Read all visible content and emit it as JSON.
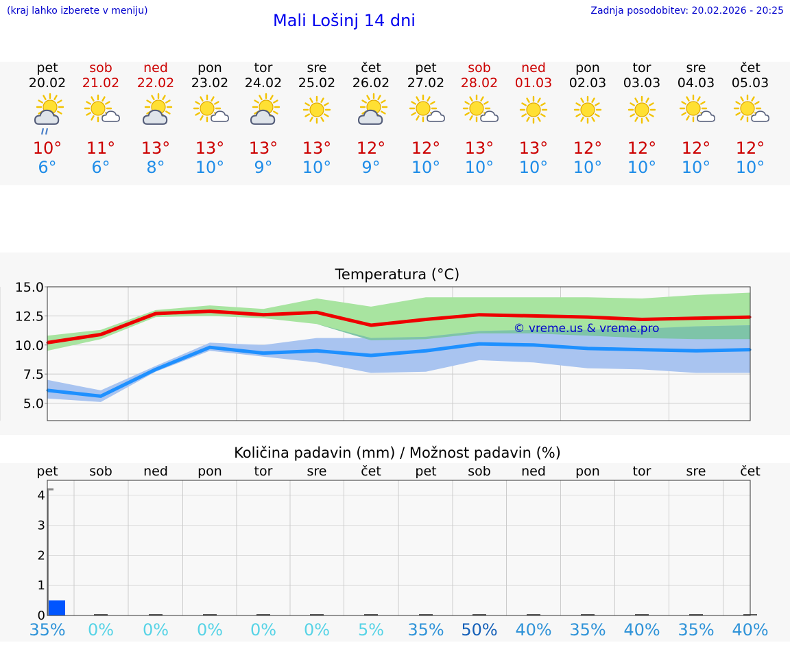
{
  "header": {
    "hint": "(kraj lahko izberete v meniju)",
    "title": "Mali Lošinj 14 dni",
    "updated": "Zadnja posodobitev: 20.02.2026 - 20:25"
  },
  "days": [
    {
      "name": "pet",
      "date": "20.02",
      "weekend": false,
      "icon": "sun-cloud-rain-icon",
      "tmax": "10°",
      "tmin": "6°"
    },
    {
      "name": "sob",
      "date": "21.02",
      "weekend": true,
      "icon": "sun-small-cloud-icon",
      "tmax": "11°",
      "tmin": "6°"
    },
    {
      "name": "ned",
      "date": "22.02",
      "weekend": true,
      "icon": "sun-cloud-icon",
      "tmax": "13°",
      "tmin": "8°"
    },
    {
      "name": "pon",
      "date": "23.02",
      "weekend": false,
      "icon": "sun-small-cloud-icon",
      "tmax": "13°",
      "tmin": "10°"
    },
    {
      "name": "tor",
      "date": "24.02",
      "weekend": false,
      "icon": "sun-cloud-icon",
      "tmax": "13°",
      "tmin": "9°"
    },
    {
      "name": "sre",
      "date": "25.02",
      "weekend": false,
      "icon": "sun-icon",
      "tmax": "13°",
      "tmin": "10°"
    },
    {
      "name": "čet",
      "date": "26.02",
      "weekend": false,
      "icon": "sun-cloud-icon",
      "tmax": "12°",
      "tmin": "9°"
    },
    {
      "name": "pet",
      "date": "27.02",
      "weekend": false,
      "icon": "sun-small-cloud-icon",
      "tmax": "12°",
      "tmin": "10°"
    },
    {
      "name": "sob",
      "date": "28.02",
      "weekend": true,
      "icon": "sun-small-cloud-icon",
      "tmax": "13°",
      "tmin": "10°"
    },
    {
      "name": "ned",
      "date": "01.03",
      "weekend": true,
      "icon": "sun-icon",
      "tmax": "13°",
      "tmin": "10°"
    },
    {
      "name": "pon",
      "date": "02.03",
      "weekend": false,
      "icon": "sun-icon",
      "tmax": "12°",
      "tmin": "10°"
    },
    {
      "name": "tor",
      "date": "03.03",
      "weekend": false,
      "icon": "sun-icon",
      "tmax": "12°",
      "tmin": "10°"
    },
    {
      "name": "sre",
      "date": "04.03",
      "weekend": false,
      "icon": "sun-small-cloud-icon",
      "tmax": "12°",
      "tmin": "10°"
    },
    {
      "name": "čet",
      "date": "05.03",
      "weekend": false,
      "icon": "sun-small-cloud-icon",
      "tmax": "12°",
      "tmin": "10°"
    }
  ],
  "colors": {
    "max_line": "#ee0000",
    "min_line": "#1e90ff",
    "max_band": "#a8e4a0",
    "min_band": "#a9c4f0",
    "overlap_band": "#7ec4a8",
    "precip_bar": "#0055ff",
    "weekend": "#cc0000"
  },
  "chart_data": [
    {
      "type": "line",
      "title": "Temperatura (°C)",
      "watermark": "© vreme.us & vreme.pro",
      "ylim": [
        3.5,
        15.0
      ],
      "yticks": [
        "15.0",
        "12.5",
        "10.0",
        "7.5",
        "5.0"
      ],
      "x": [
        0,
        1,
        2,
        3,
        4,
        5,
        6,
        7,
        8,
        9,
        10,
        11,
        12,
        13
      ],
      "series": [
        {
          "name": "max",
          "values": [
            10.2,
            10.9,
            12.7,
            12.9,
            12.6,
            12.8,
            11.7,
            12.2,
            12.6,
            12.5,
            12.4,
            12.2,
            12.3,
            12.4
          ],
          "band_low": [
            9.5,
            10.5,
            12.4,
            12.5,
            12.3,
            11.8,
            10.4,
            10.5,
            11.0,
            11.0,
            10.8,
            10.6,
            10.5,
            10.5
          ],
          "band_high": [
            10.8,
            11.3,
            13.0,
            13.4,
            13.1,
            14.0,
            13.3,
            14.1,
            14.1,
            14.1,
            14.1,
            14.0,
            14.3,
            14.5
          ]
        },
        {
          "name": "min",
          "values": [
            6.1,
            5.6,
            7.9,
            9.8,
            9.3,
            9.5,
            9.1,
            9.5,
            10.1,
            10.0,
            9.7,
            9.6,
            9.5,
            9.6
          ],
          "band_low": [
            5.4,
            5.1,
            7.7,
            9.5,
            9.0,
            8.5,
            7.6,
            7.7,
            8.7,
            8.5,
            8.0,
            7.9,
            7.6,
            7.6
          ],
          "band_high": [
            7.0,
            6.1,
            8.2,
            10.2,
            10.0,
            10.6,
            10.6,
            10.7,
            11.2,
            11.3,
            11.3,
            11.4,
            11.6,
            11.7
          ]
        }
      ]
    },
    {
      "type": "bar",
      "title": "Količina padavin (mm) / Možnost padavin (%)",
      "ylim": [
        0,
        4.5
      ],
      "yticks": [
        "4",
        "3",
        "2",
        "1",
        "0"
      ],
      "categories": [
        "pet",
        "sob",
        "ned",
        "pon",
        "tor",
        "sre",
        "čet",
        "pet",
        "sob",
        "ned",
        "pon",
        "tor",
        "sre",
        "čet"
      ],
      "values": [
        0.5,
        0,
        0,
        0,
        0,
        0,
        0,
        0,
        0,
        0,
        0,
        0,
        0,
        0
      ],
      "max_marker": 4.2,
      "probability": [
        "35%",
        "0%",
        "0%",
        "0%",
        "0%",
        "0%",
        "5%",
        "35%",
        "50%",
        "40%",
        "35%",
        "40%",
        "35%",
        "40%"
      ]
    }
  ]
}
